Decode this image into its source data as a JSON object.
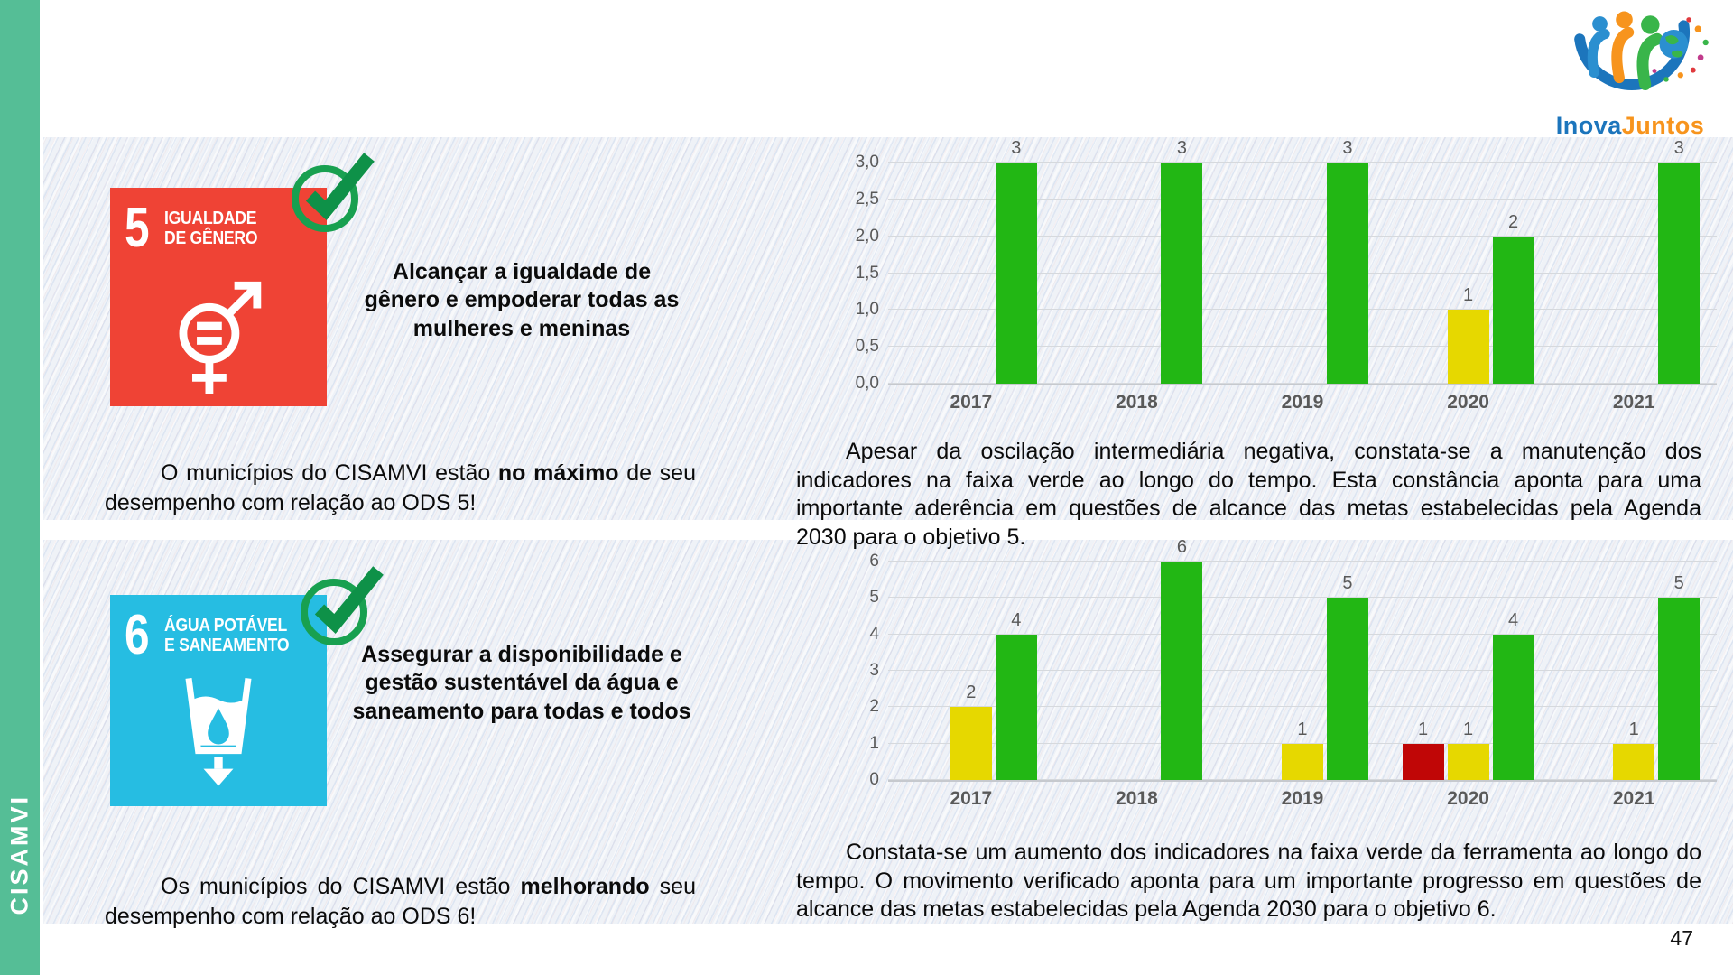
{
  "sidebar": {
    "label": "CISAMVI",
    "color": "#55BE96"
  },
  "logo": {
    "part1": "Inova",
    "part2": "Juntos",
    "color1": "#1C75BC",
    "color2": "#F7941D"
  },
  "page": {
    "number": "47"
  },
  "sections": [
    {
      "ods_number": "5",
      "ods_name_line1": "IGUALDADE",
      "ods_name_line2": "DE GÊNERO",
      "ods_color": "#EF4335",
      "goal": "Alcançar a igualdade de gênero e empoderar todas as mulheres e meninas",
      "status_pre": "O municípios do CISAMVI estão ",
      "status_bold": "no máximo",
      "status_post": " de seu desempenho com relação ao ODS 5!",
      "analysis": "Apesar da oscilação intermediária negativa, constata-se a manutenção dos indicadores na faixa verde ao longo do tempo. Esta constância aponta para uma importante aderência em questões de alcance das metas estabelecidas pela Agenda 2030 para o objetivo 5."
    },
    {
      "ods_number": "6",
      "ods_name_line1": "ÁGUA POTÁVEL",
      "ods_name_line2": "E SANEAMENTO",
      "ods_color": "#26BDE2",
      "goal": "Assegurar a disponibilidade e gestão sustentável da água e saneamento para todas e todos",
      "status_pre": "Os municípios do CISAMVI estão ",
      "status_bold": "melhorando",
      "status_post": " seu desempenho com relação ao ODS 6!",
      "analysis": "Constata-se um aumento dos indicadores na faixa verde da ferramenta ao longo do tempo. O movimento verificado aponta para um importante progresso em questões de alcance das metas estabelecidas pela Agenda 2030 para o objetivo 6."
    }
  ],
  "chart_data": [
    {
      "type": "bar",
      "categories": [
        "2017",
        "2018",
        "2019",
        "2020",
        "2021"
      ],
      "series": [
        {
          "name": "vermelho",
          "color": "#C00606",
          "values": [
            null,
            null,
            null,
            null,
            null
          ]
        },
        {
          "name": "amarelo",
          "color": "#E6D800",
          "values": [
            null,
            null,
            null,
            1,
            null
          ]
        },
        {
          "name": "verde",
          "color": "#22B714",
          "values": [
            3,
            3,
            3,
            2,
            3
          ]
        }
      ],
      "ylim": [
        0,
        3
      ],
      "ytick_step": 0.5,
      "ytick_labels": [
        "0,0",
        "0,5",
        "1,0",
        "1,5",
        "2,0",
        "2,5",
        "3,0"
      ],
      "grid": true,
      "legend": "none"
    },
    {
      "type": "bar",
      "categories": [
        "2017",
        "2018",
        "2019",
        "2020",
        "2021"
      ],
      "series": [
        {
          "name": "vermelho",
          "color": "#C00606",
          "values": [
            null,
            null,
            null,
            1,
            null
          ]
        },
        {
          "name": "amarelo",
          "color": "#E6D800",
          "values": [
            2,
            null,
            1,
            1,
            1
          ]
        },
        {
          "name": "verde",
          "color": "#22B714",
          "values": [
            4,
            6,
            5,
            4,
            5
          ]
        }
      ],
      "ylim": [
        0,
        6
      ],
      "ytick_step": 1,
      "ytick_labels": [
        "0",
        "1",
        "2",
        "3",
        "4",
        "5",
        "6"
      ],
      "grid": true,
      "legend": "none"
    }
  ]
}
